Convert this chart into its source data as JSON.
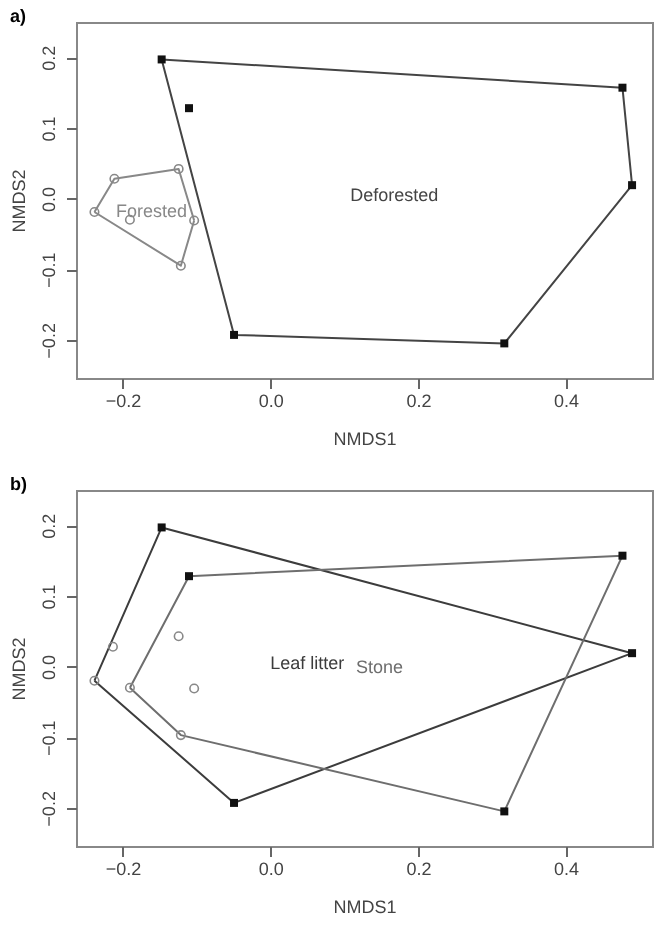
{
  "chart_data": [
    {
      "type": "scatter",
      "title": "a)",
      "xlabel": "NMDS1",
      "ylabel": "NMDS2",
      "xlim": [
        -0.263,
        0.517
      ],
      "ylim": [
        -0.254,
        0.25
      ],
      "xticks": [
        -0.2,
        {
          "value": 0,
          "label": "0.0"
        },
        0.2,
        0.4
      ],
      "yticks": [
        -0.2,
        -0.1,
        {
          "value": 0,
          "label": "0.0"
        },
        0.1,
        0.2
      ],
      "grid": false,
      "series": [
        {
          "type": "line",
          "name": "Forested",
          "color": "#888888",
          "x": [
            -0.238,
            -0.211,
            -0.124,
            -0.103
          ],
          "values": [
            -0.019,
            0.028,
            0.042,
            -0.031
          ]
        },
        {
          "type": "line",
          "color": "#888888",
          "x": [
            -0.238,
            -0.121,
            -0.103
          ],
          "values": [
            -0.019,
            -0.095,
            -0.031
          ]
        },
        {
          "type": "line",
          "name": "Deforested",
          "color": "#444444",
          "x": [
            -0.147,
            0.477,
            0.49
          ],
          "values": [
            0.197,
            0.157,
            0.019
          ]
        },
        {
          "type": "line",
          "color": "#444444",
          "x": [
            -0.147,
            -0.049,
            0.317,
            0.49
          ],
          "values": [
            0.197,
            -0.193,
            -0.205,
            0.019
          ]
        },
        {
          "type": "scatter",
          "marker": "circle",
          "color": "#888888",
          "x": [
            -0.211,
            -0.124,
            -0.103,
            -0.121,
            -0.238,
            -0.19
          ],
          "values": [
            0.028,
            0.042,
            -0.031,
            -0.095,
            -0.019,
            -0.03
          ]
        },
        {
          "type": "scatter",
          "marker": "square",
          "color": "#111111",
          "x": [
            -0.147,
            -0.11,
            0.477,
            0.49,
            0.317,
            -0.049
          ],
          "values": [
            0.197,
            0.128,
            0.157,
            0.019,
            -0.205,
            -0.193
          ]
        }
      ]
    },
    {
      "type": "scatter",
      "title": "b)",
      "xlabel": "NMDS1",
      "ylabel": "NMDS2",
      "xlim": [
        -0.263,
        0.517
      ],
      "ylim": [
        -0.254,
        0.25
      ],
      "xticks": [
        -0.2,
        {
          "value": 0,
          "label": "0.0"
        },
        0.2,
        0.4
      ],
      "yticks": [
        -0.2,
        -0.1,
        {
          "value": 0,
          "label": "0.0"
        },
        0.1,
        0.2
      ],
      "grid": false,
      "series": [
        {
          "type": "line",
          "name": "Leaf litter",
          "color": "#3c3c3c",
          "x": [
            -0.238,
            -0.147,
            0.49
          ],
          "values": [
            -0.02,
            0.197,
            0.019
          ]
        },
        {
          "type": "line",
          "color": "#3c3c3c",
          "x": [
            -0.238,
            -0.049,
            0.49
          ],
          "values": [
            -0.02,
            -0.193,
            0.019
          ]
        },
        {
          "type": "line",
          "name": "Stone",
          "color": "#6e6e6e",
          "x": [
            -0.19,
            -0.11,
            0.477
          ],
          "values": [
            -0.03,
            0.128,
            0.157
          ]
        },
        {
          "type": "line",
          "color": "#6e6e6e",
          "x": [
            -0.19,
            -0.121,
            0.317,
            0.477
          ],
          "values": [
            -0.03,
            -0.097,
            -0.205,
            0.157
          ]
        },
        {
          "type": "scatter",
          "marker": "circle",
          "color": "#888888",
          "x": [
            -0.213,
            -0.124,
            -0.103,
            -0.121,
            -0.238,
            -0.19
          ],
          "values": [
            0.028,
            0.043,
            -0.031,
            -0.097,
            -0.02,
            -0.03
          ]
        },
        {
          "type": "scatter",
          "marker": "square",
          "color": "#111111",
          "x": [
            -0.147,
            -0.11,
            0.477,
            0.49,
            0.317,
            -0.049
          ],
          "values": [
            0.197,
            0.128,
            0.157,
            0.019,
            -0.205,
            -0.193
          ]
        }
      ]
    }
  ]
}
